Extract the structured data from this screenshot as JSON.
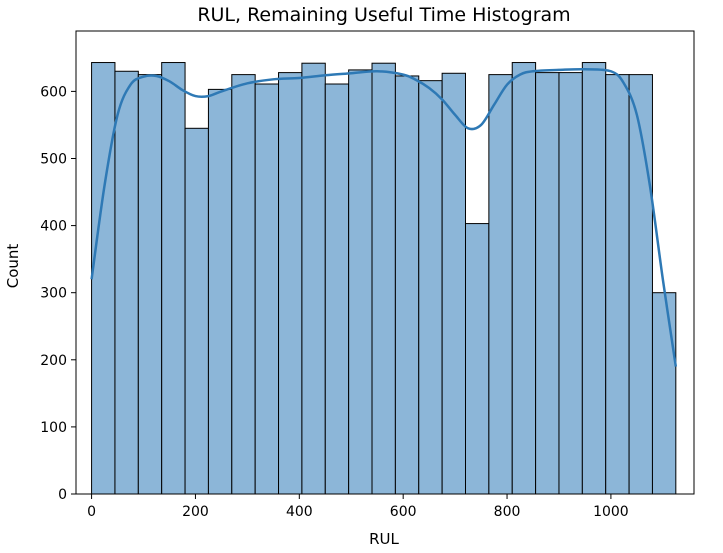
{
  "chart_data": {
    "type": "bar",
    "title": "RUL, Remaining Useful Time Histogram",
    "xlabel": "RUL",
    "ylabel": "Count",
    "xlim": [
      -30,
      1160
    ],
    "ylim": [
      0,
      690
    ],
    "xticks": [
      0,
      200,
      400,
      600,
      800,
      1000
    ],
    "yticks": [
      0,
      100,
      200,
      300,
      400,
      500,
      600
    ],
    "grid": false,
    "legend": "none",
    "bin_edges": [
      0,
      45,
      90,
      135,
      180,
      225,
      270,
      315,
      360,
      405,
      450,
      495,
      540,
      585,
      630,
      675,
      720,
      765,
      810,
      855,
      900,
      945,
      990,
      1035,
      1080,
      1125
    ],
    "values": [
      643,
      630,
      625,
      643,
      545,
      603,
      625,
      611,
      628,
      642,
      611,
      632,
      642,
      623,
      616,
      627,
      403,
      625,
      643,
      628,
      628,
      643,
      625,
      625,
      300
    ],
    "kde": {
      "x": [
        0,
        25,
        50,
        75,
        100,
        125,
        150,
        175,
        200,
        225,
        250,
        300,
        350,
        400,
        450,
        500,
        550,
        600,
        625,
        650,
        675,
        700,
        725,
        750,
        775,
        800,
        825,
        850,
        900,
        950,
        1000,
        1025,
        1050,
        1075,
        1100,
        1125
      ],
      "y": [
        320,
        460,
        565,
        610,
        622,
        623,
        615,
        602,
        593,
        593,
        600,
        612,
        618,
        620,
        624,
        627,
        630,
        625,
        617,
        605,
        588,
        565,
        545,
        550,
        580,
        610,
        625,
        630,
        632,
        633,
        630,
        612,
        565,
        460,
        320,
        190
      ]
    },
    "colors": {
      "bar_fill": "#8cb6d8",
      "bar_edge": "#000000",
      "kde_line": "#2e79b5"
    }
  }
}
